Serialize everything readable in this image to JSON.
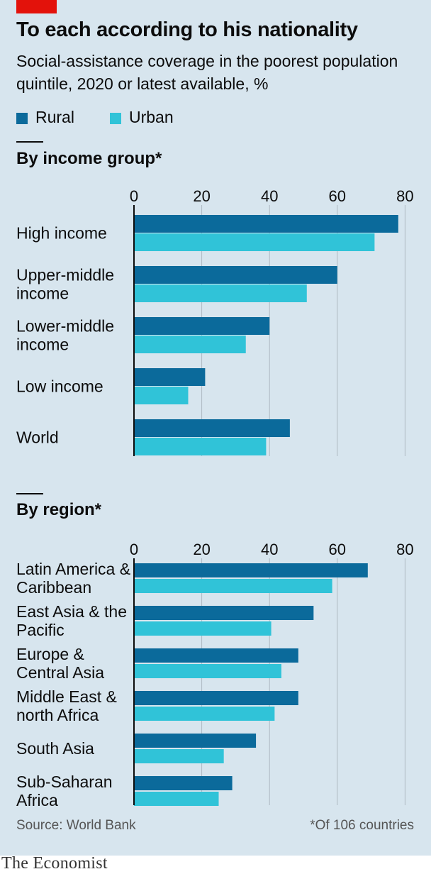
{
  "header": {
    "title": "To each according to his nationality",
    "subtitle": "Social-assistance coverage in the poorest population quintile, 2020 or latest available, %"
  },
  "legend": [
    {
      "name": "Rural",
      "color": "#0b6a9b"
    },
    {
      "name": "Urban",
      "color": "#30c3d8"
    }
  ],
  "colors": {
    "background": "#d7e5ee",
    "gridline": "#aeb9c2",
    "axis": "#0c0c0c",
    "brand_red": "#e3120b"
  },
  "chart_data": [
    {
      "type": "bar",
      "orientation": "horizontal",
      "title": "By income group*",
      "xlim": [
        0,
        80
      ],
      "ticks": [
        0,
        20,
        40,
        60,
        80
      ],
      "tick_position": "top",
      "grid": true,
      "categories": [
        "High income",
        "Upper-middle income",
        "Lower-middle income",
        "Low income",
        "World"
      ],
      "series": [
        {
          "name": "Rural",
          "values": [
            78,
            60,
            40,
            21,
            46
          ]
        },
        {
          "name": "Urban",
          "values": [
            71,
            51,
            33,
            16,
            39
          ]
        }
      ]
    },
    {
      "type": "bar",
      "orientation": "horizontal",
      "title": "By region*",
      "xlim": [
        0,
        80
      ],
      "ticks": [
        0,
        20,
        40,
        60,
        80
      ],
      "tick_position": "top",
      "grid": true,
      "categories": [
        "Latin America & Caribbean",
        "East Asia & the Pacific",
        "Europe & Central Asia",
        "Middle East & north Africa",
        "South Asia",
        "Sub-Saharan Africa"
      ],
      "series": [
        {
          "name": "Rural",
          "values": [
            69,
            53,
            48.5,
            48.5,
            36,
            29
          ]
        },
        {
          "name": "Urban",
          "values": [
            58.5,
            40.5,
            43.5,
            41.5,
            26.5,
            25
          ]
        }
      ]
    }
  ],
  "footer": {
    "source": "Source: World Bank",
    "footnote": "*Of 106 countries",
    "brand": "The Economist"
  }
}
